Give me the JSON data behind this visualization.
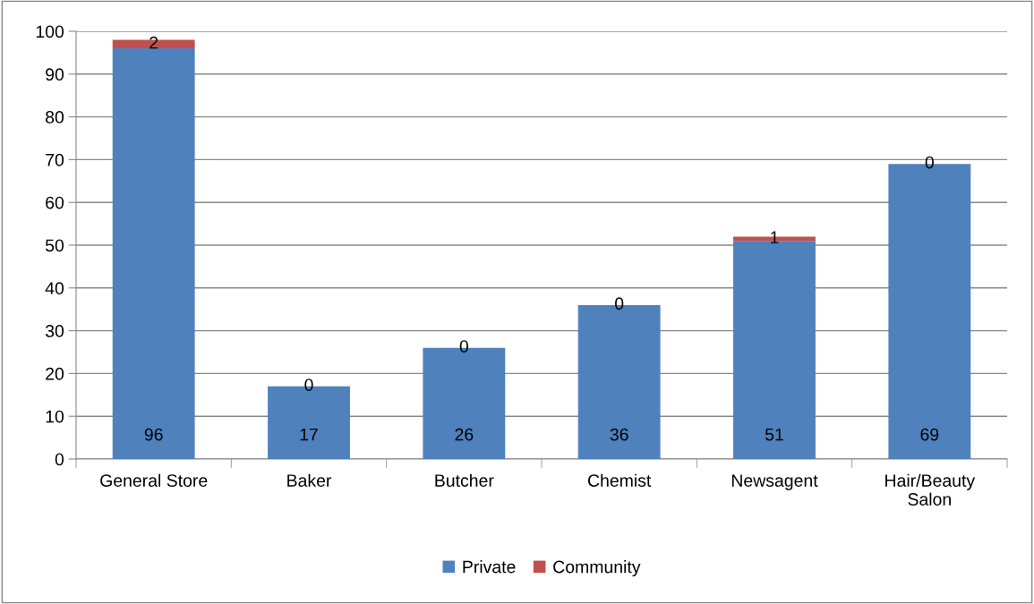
{
  "chart_data": {
    "type": "bar",
    "stacked": true,
    "categories": [
      "General Store",
      "Baker",
      "Butcher",
      "Chemist",
      "Newsagent",
      "Hair/Beauty\nSalon"
    ],
    "series": [
      {
        "name": "Private",
        "color": "#4f81bd",
        "values": [
          96,
          17,
          26,
          36,
          51,
          69
        ]
      },
      {
        "name": "Community",
        "color": "#c0504d",
        "values": [
          2,
          0,
          0,
          0,
          1,
          0
        ]
      }
    ],
    "ylim": [
      0,
      100
    ],
    "yticks": [
      0,
      10,
      20,
      30,
      40,
      50,
      60,
      70,
      80,
      90,
      100
    ],
    "grid": "y",
    "legend": "bottom",
    "data_labels": true
  }
}
